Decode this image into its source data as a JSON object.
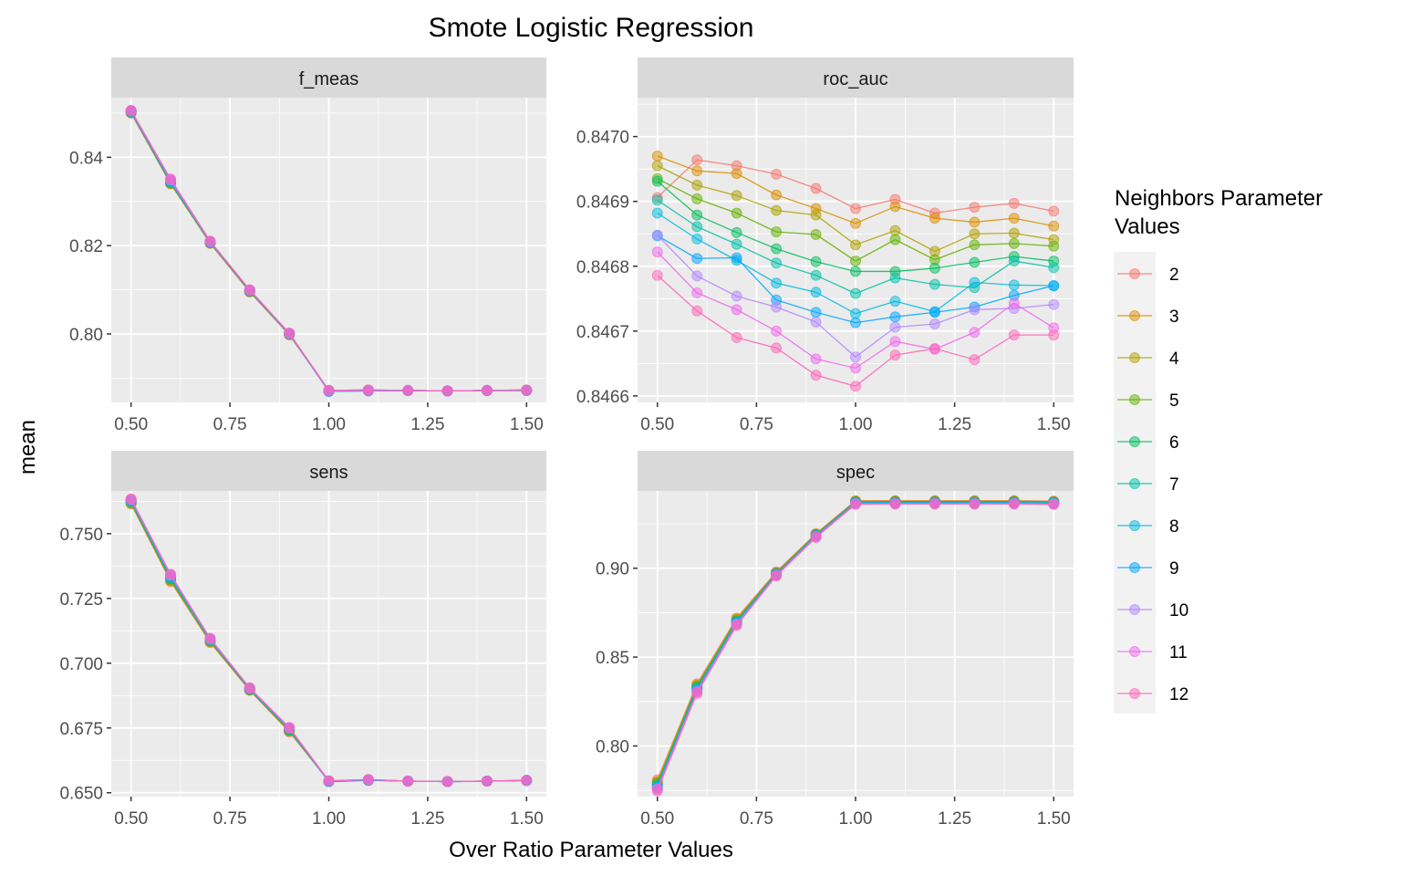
{
  "chart_data": {
    "type": "line",
    "title": "Smote Logistic Regression",
    "xlabel": "Over Ratio Parameter Values",
    "ylabel": "mean",
    "legend": {
      "title": [
        "Neighbors Parameter",
        "Values"
      ],
      "placement": "right",
      "entries": [
        "2",
        "3",
        "4",
        "5",
        "6",
        "7",
        "8",
        "9",
        "10",
        "11",
        "12"
      ]
    },
    "colors": [
      "#F8766D",
      "#DB8E00",
      "#AEA200",
      "#64B200",
      "#00BD5C",
      "#00C1A7",
      "#00BADE",
      "#00A6FF",
      "#B385FF",
      "#EF67EB",
      "#FF63B6"
    ],
    "x": [
      0.5,
      0.6,
      0.7,
      0.8,
      0.9,
      1.0,
      1.1,
      1.2,
      1.3,
      1.4,
      1.5
    ],
    "x_ticks": [
      "0.50",
      "0.75",
      "1.00",
      "1.25",
      "1.50"
    ],
    "x_tick_values": [
      0.5,
      0.75,
      1.0,
      1.25,
      1.5
    ],
    "xlim": [
      0.45,
      1.55
    ],
    "grid": true,
    "panels": [
      {
        "name": "f_meas",
        "ylim": [
          0.7845,
          0.8535
        ],
        "y_ticks": [
          "0.80",
          "0.82",
          "0.84"
        ],
        "y_tick_values": [
          0.8,
          0.82,
          0.84
        ],
        "series": [
          {
            "name": "2",
            "values": [
              0.85,
              0.834,
              0.8205,
              0.8095,
              0.7998,
              0.7872,
              0.7873,
              0.7872,
              0.7871,
              0.7872,
              0.7873
            ]
          },
          {
            "name": "3",
            "values": [
              0.8501,
              0.834,
              0.8206,
              0.8096,
              0.7999,
              0.7872,
              0.7873,
              0.7872,
              0.7871,
              0.7872,
              0.7873
            ]
          },
          {
            "name": "4",
            "values": [
              0.8502,
              0.8341,
              0.8206,
              0.8096,
              0.7999,
              0.7872,
              0.7873,
              0.7872,
              0.7871,
              0.7872,
              0.7873
            ]
          },
          {
            "name": "5",
            "values": [
              0.8502,
              0.8342,
              0.8207,
              0.8097,
              0.7999,
              0.7871,
              0.7872,
              0.7872,
              0.7871,
              0.7872,
              0.7873
            ]
          },
          {
            "name": "6",
            "values": [
              0.8503,
              0.8343,
              0.8207,
              0.8097,
              0.8,
              0.7871,
              0.7872,
              0.7872,
              0.7871,
              0.7872,
              0.7872
            ]
          },
          {
            "name": "7",
            "values": [
              0.8503,
              0.8344,
              0.8208,
              0.8098,
              0.8,
              0.787,
              0.7872,
              0.7872,
              0.7871,
              0.7872,
              0.7872
            ]
          },
          {
            "name": "8",
            "values": [
              0.8504,
              0.8345,
              0.8208,
              0.8098,
              0.8001,
              0.787,
              0.7871,
              0.7872,
              0.7871,
              0.7872,
              0.7872
            ]
          },
          {
            "name": "9",
            "values": [
              0.8504,
              0.8346,
              0.8209,
              0.8099,
              0.8001,
              0.787,
              0.7871,
              0.7872,
              0.7871,
              0.7872,
              0.7872
            ]
          },
          {
            "name": "10",
            "values": [
              0.8505,
              0.8348,
              0.8209,
              0.8099,
              0.8001,
              0.7871,
              0.7872,
              0.7872,
              0.7871,
              0.7872,
              0.7873
            ]
          },
          {
            "name": "11",
            "values": [
              0.8506,
              0.835,
              0.821,
              0.81,
              0.8002,
              0.7872,
              0.7873,
              0.7872,
              0.7871,
              0.7872,
              0.7873
            ]
          },
          {
            "name": "12",
            "values": [
              0.8506,
              0.8351,
              0.821,
              0.81,
              0.8002,
              0.7872,
              0.7873,
              0.7872,
              0.7871,
              0.7872,
              0.7873
            ]
          }
        ]
      },
      {
        "name": "roc_auc",
        "ylim": [
          0.84659,
          0.84706
        ],
        "y_ticks": [
          "0.8466",
          "0.8467",
          "0.8468",
          "0.8469",
          "0.8470"
        ],
        "y_tick_values": [
          0.8466,
          0.8467,
          0.8468,
          0.8469,
          0.847
        ],
        "series": [
          {
            "name": "2",
            "values": [
              0.846906,
              0.846964,
              0.846955,
              0.846942,
              0.84692,
              0.846889,
              0.846903,
              0.846882,
              0.846891,
              0.846897,
              0.846885
            ]
          },
          {
            "name": "3",
            "values": [
              0.84697,
              0.846947,
              0.846943,
              0.84691,
              0.846889,
              0.846866,
              0.846892,
              0.846874,
              0.846868,
              0.846874,
              0.846862
            ]
          },
          {
            "name": "4",
            "values": [
              0.846955,
              0.846925,
              0.846909,
              0.846886,
              0.846879,
              0.846833,
              0.846855,
              0.846823,
              0.84685,
              0.846851,
              0.846841
            ]
          },
          {
            "name": "5",
            "values": [
              0.846935,
              0.846904,
              0.846882,
              0.846853,
              0.846849,
              0.846808,
              0.846841,
              0.84681,
              0.846833,
              0.846835,
              0.846831
            ]
          },
          {
            "name": "6",
            "values": [
              0.846931,
              0.846879,
              0.846852,
              0.846827,
              0.846807,
              0.846792,
              0.846792,
              0.846797,
              0.846806,
              0.846815,
              0.846808
            ]
          },
          {
            "name": "7",
            "values": [
              0.846902,
              0.846861,
              0.846834,
              0.846805,
              0.846786,
              0.846758,
              0.846782,
              0.846772,
              0.846767,
              0.846808,
              0.846798
            ]
          },
          {
            "name": "8",
            "values": [
              0.846882,
              0.846842,
              0.846809,
              0.846774,
              0.84676,
              0.846727,
              0.846746,
              0.84673,
              0.846775,
              0.846771,
              0.84677
            ]
          },
          {
            "name": "9",
            "values": [
              0.846847,
              0.846812,
              0.846813,
              0.846748,
              0.846729,
              0.846713,
              0.846722,
              0.846729,
              0.846737,
              0.846755,
              0.84677
            ]
          },
          {
            "name": "10",
            "values": [
              0.846848,
              0.846785,
              0.846754,
              0.846737,
              0.846714,
              0.84666,
              0.846706,
              0.846711,
              0.846733,
              0.846735,
              0.846741
            ]
          },
          {
            "name": "11",
            "values": [
              0.846822,
              0.846759,
              0.846733,
              0.8467,
              0.846657,
              0.846643,
              0.846684,
              0.846672,
              0.846698,
              0.846743,
              0.846705
            ]
          },
          {
            "name": "12",
            "values": [
              0.846786,
              0.846731,
              0.84669,
              0.846674,
              0.846632,
              0.846615,
              0.846663,
              0.846673,
              0.846656,
              0.846694,
              0.846694
            ]
          }
        ]
      },
      {
        "name": "sens",
        "ylim": [
          0.6485,
          0.7665
        ],
        "y_ticks": [
          "0.650",
          "0.675",
          "0.700",
          "0.725",
          "0.750"
        ],
        "y_tick_values": [
          0.65,
          0.675,
          0.7,
          0.725,
          0.75
        ],
        "series": [
          {
            "name": "2",
            "values": [
              0.7615,
              0.7315,
              0.708,
              0.6895,
              0.6735,
              0.6545,
              0.655,
              0.6545,
              0.6543,
              0.6545,
              0.6548
            ]
          },
          {
            "name": "3",
            "values": [
              0.7617,
              0.7318,
              0.7082,
              0.6896,
              0.6737,
              0.6545,
              0.655,
              0.6545,
              0.6543,
              0.6545,
              0.6548
            ]
          },
          {
            "name": "4",
            "values": [
              0.7619,
              0.7321,
              0.7084,
              0.6897,
              0.6739,
              0.6545,
              0.655,
              0.6545,
              0.6543,
              0.6545,
              0.6548
            ]
          },
          {
            "name": "5",
            "values": [
              0.7621,
              0.7324,
              0.7086,
              0.6898,
              0.6741,
              0.6544,
              0.6549,
              0.6545,
              0.6543,
              0.6545,
              0.6547
            ]
          },
          {
            "name": "6",
            "values": [
              0.7623,
              0.7327,
              0.7088,
              0.6899,
              0.6743,
              0.6544,
              0.6549,
              0.6545,
              0.6543,
              0.6545,
              0.6547
            ]
          },
          {
            "name": "7",
            "values": [
              0.7625,
              0.733,
              0.7089,
              0.69,
              0.6745,
              0.6543,
              0.6548,
              0.6545,
              0.6543,
              0.6545,
              0.6547
            ]
          },
          {
            "name": "8",
            "values": [
              0.7627,
              0.7333,
              0.7091,
              0.6901,
              0.6747,
              0.6543,
              0.6548,
              0.6545,
              0.6543,
              0.6545,
              0.6547
            ]
          },
          {
            "name": "9",
            "values": [
              0.7629,
              0.7336,
              0.7093,
              0.6902,
              0.6749,
              0.6543,
              0.6548,
              0.6545,
              0.6543,
              0.6545,
              0.6547
            ]
          },
          {
            "name": "10",
            "values": [
              0.7631,
              0.7339,
              0.7094,
              0.6903,
              0.675,
              0.6545,
              0.655,
              0.6545,
              0.6543,
              0.6545,
              0.6548
            ]
          },
          {
            "name": "11",
            "values": [
              0.7633,
              0.7342,
              0.7095,
              0.6904,
              0.6751,
              0.6546,
              0.6551,
              0.6545,
              0.6543,
              0.6545,
              0.6548
            ]
          },
          {
            "name": "12",
            "values": [
              0.7634,
              0.7343,
              0.7096,
              0.6905,
              0.6752,
              0.6546,
              0.6551,
              0.6545,
              0.6543,
              0.6545,
              0.6548
            ]
          }
        ]
      },
      {
        "name": "spec",
        "ylim": [
          0.7715,
          0.9435
        ],
        "y_ticks": [
          "0.80",
          "0.85",
          "0.90"
        ],
        "y_tick_values": [
          0.8,
          0.85,
          0.9
        ],
        "series": [
          {
            "name": "2",
            "values": [
              0.781,
              0.835,
              0.872,
              0.898,
              0.9195,
              0.938,
              0.938,
              0.938,
              0.938,
              0.938,
              0.9378
            ]
          },
          {
            "name": "3",
            "values": [
              0.78,
              0.8343,
              0.8714,
              0.8975,
              0.9192,
              0.9378,
              0.9378,
              0.9378,
              0.9378,
              0.9378,
              0.9376
            ]
          },
          {
            "name": "4",
            "values": [
              0.7795,
              0.8338,
              0.871,
              0.8973,
              0.919,
              0.9376,
              0.9377,
              0.9377,
              0.9377,
              0.9377,
              0.9375
            ]
          },
          {
            "name": "5",
            "values": [
              0.7788,
              0.8333,
              0.8706,
              0.8971,
              0.9188,
              0.9374,
              0.9375,
              0.9375,
              0.9375,
              0.9375,
              0.9373
            ]
          },
          {
            "name": "6",
            "values": [
              0.7782,
              0.8328,
              0.8702,
              0.8969,
              0.9186,
              0.9372,
              0.9373,
              0.9373,
              0.9373,
              0.9373,
              0.9371
            ]
          },
          {
            "name": "7",
            "values": [
              0.7776,
              0.8323,
              0.8698,
              0.8967,
              0.9184,
              0.937,
              0.9371,
              0.9371,
              0.9371,
              0.9371,
              0.9369
            ]
          },
          {
            "name": "8",
            "values": [
              0.777,
              0.8318,
              0.8694,
              0.8965,
              0.9182,
              0.9368,
              0.9369,
              0.9369,
              0.9369,
              0.9369,
              0.9367
            ]
          },
          {
            "name": "9",
            "values": [
              0.7765,
              0.8313,
              0.869,
              0.8963,
              0.918,
              0.9366,
              0.9367,
              0.9367,
              0.9367,
              0.9367,
              0.9365
            ]
          },
          {
            "name": "10",
            "values": [
              0.776,
              0.8308,
              0.8686,
              0.8961,
              0.9178,
              0.9364,
              0.9365,
              0.9365,
              0.9365,
              0.9365,
              0.9363
            ]
          },
          {
            "name": "11",
            "values": [
              0.7755,
              0.8303,
              0.8682,
              0.8959,
              0.9176,
              0.9362,
              0.9363,
              0.9363,
              0.9363,
              0.9363,
              0.9361
            ]
          },
          {
            "name": "12",
            "values": [
              0.7748,
              0.8296,
              0.8678,
              0.8957,
              0.9173,
              0.936,
              0.9361,
              0.9361,
              0.9361,
              0.9361,
              0.9359
            ]
          }
        ]
      }
    ]
  }
}
